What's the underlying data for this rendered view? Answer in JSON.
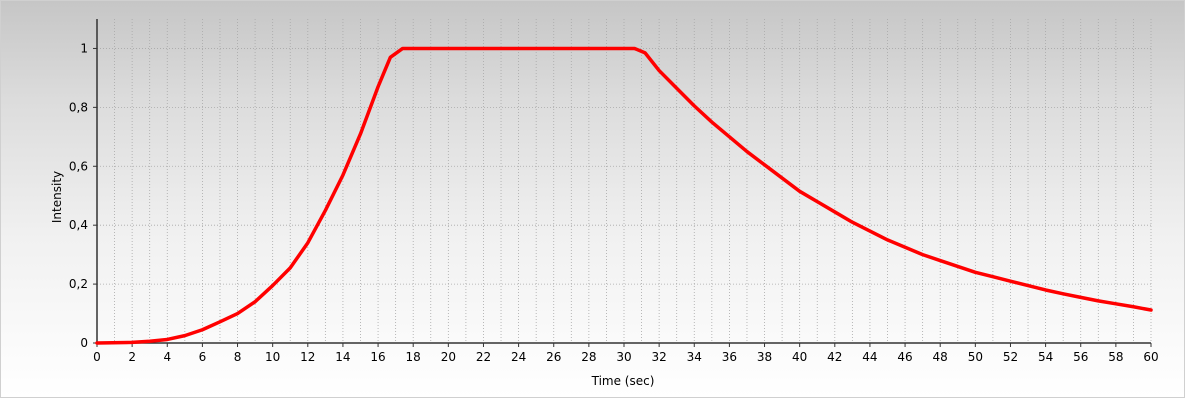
{
  "chart_data": {
    "type": "line",
    "xlabel": "Time (sec)",
    "ylabel": "Intensity",
    "xlim": [
      0,
      60
    ],
    "ylim": [
      0,
      1.1
    ],
    "x_ticks": [
      "0",
      "2",
      "4",
      "6",
      "8",
      "10",
      "12",
      "14",
      "16",
      "18",
      "20",
      "22",
      "24",
      "26",
      "28",
      "30",
      "32",
      "34",
      "36",
      "38",
      "40",
      "42",
      "44",
      "46",
      "48",
      "50",
      "52",
      "54",
      "56",
      "58",
      "60"
    ],
    "y_ticks": [
      "0",
      "0,2",
      "0,4",
      "0,6",
      "0,8",
      "1"
    ],
    "grid": true,
    "legend": "none",
    "series": [
      {
        "color": "#ff0000",
        "x": [
          0,
          2,
          3,
          4,
          5,
          6,
          7,
          8,
          9,
          10,
          11,
          12,
          13,
          14,
          15,
          16,
          16.7,
          17.4,
          18,
          20,
          22,
          24,
          26,
          28,
          30,
          30.6,
          31.2,
          32,
          33,
          34,
          35,
          36,
          37,
          38,
          39,
          40,
          41,
          42,
          43,
          44,
          45,
          46,
          47,
          48,
          49,
          50,
          51,
          52,
          53,
          54,
          55,
          56,
          57,
          58,
          59,
          60
        ],
        "y": [
          0.0,
          0.002,
          0.006,
          0.012,
          0.025,
          0.045,
          0.072,
          0.1,
          0.14,
          0.195,
          0.255,
          0.34,
          0.45,
          0.57,
          0.71,
          0.87,
          0.97,
          1.0,
          1.0,
          1.0,
          1.0,
          1.0,
          1.0,
          1.0,
          1.0,
          1.0,
          0.985,
          0.925,
          0.865,
          0.805,
          0.75,
          0.7,
          0.65,
          0.605,
          0.56,
          0.515,
          0.48,
          0.445,
          0.41,
          0.38,
          0.35,
          0.325,
          0.3,
          0.28,
          0.26,
          0.24,
          0.225,
          0.21,
          0.195,
          0.18,
          0.167,
          0.155,
          0.143,
          0.133,
          0.123,
          0.112
        ]
      }
    ]
  }
}
